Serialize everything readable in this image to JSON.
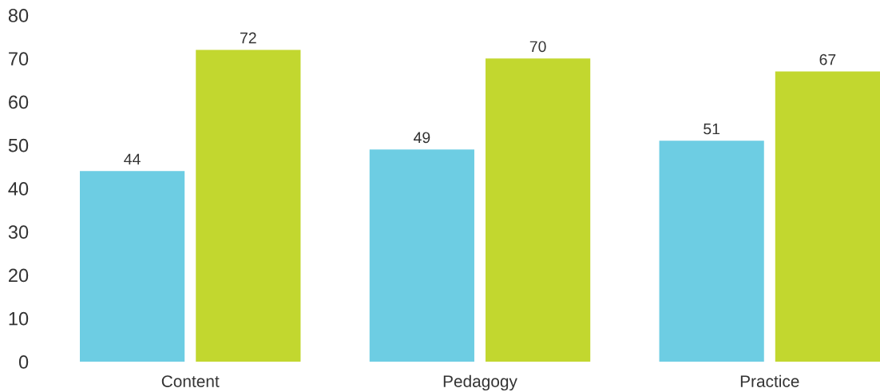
{
  "chart_data": {
    "type": "bar",
    "categories": [
      "Content",
      "Pedagogy",
      "Practice"
    ],
    "series": [
      {
        "color": "#6dcde3",
        "values": [
          44,
          49,
          51
        ]
      },
      {
        "color": "#c2d72f",
        "values": [
          72,
          70,
          67
        ]
      }
    ],
    "ylim": [
      0,
      80
    ],
    "yticks": [
      0,
      10,
      20,
      30,
      40,
      50,
      60,
      70,
      80
    ],
    "data_labels": true
  }
}
